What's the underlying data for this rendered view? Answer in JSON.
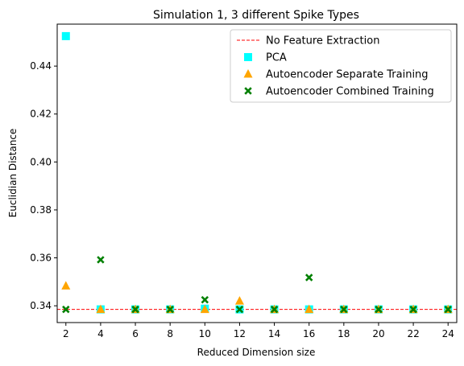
{
  "chart_data": {
    "type": "scatter",
    "title": "Simulation 1, 3 different Spike Types",
    "xlabel": "Reduced Dimension size",
    "ylabel": "Euclidian Distance",
    "xlim": [
      1.5,
      24.5
    ],
    "ylim": [
      0.333,
      0.4575
    ],
    "xticks": [
      2,
      4,
      6,
      8,
      10,
      12,
      14,
      16,
      18,
      20,
      22,
      24
    ],
    "yticks": [
      0.34,
      0.36,
      0.38,
      0.4,
      0.42,
      0.44
    ],
    "ytick_labels": [
      "0.34",
      "0.36",
      "0.38",
      "0.40",
      "0.42",
      "0.44"
    ],
    "grid": false,
    "legend_position": "top-right",
    "reference_line": {
      "name": "No Feature Extraction",
      "y": 0.3385,
      "style": "dashed",
      "color": "#ff0000"
    },
    "series": [
      {
        "name": "PCA",
        "marker": "square",
        "color": "#00ffff",
        "x": [
          2,
          4,
          6,
          8,
          10,
          12,
          14,
          16,
          18,
          20,
          22,
          24
        ],
        "y": [
          0.4525,
          0.3385,
          0.3385,
          0.3385,
          0.3388,
          0.3385,
          0.3385,
          0.3385,
          0.3385,
          0.3385,
          0.3385,
          0.3385
        ]
      },
      {
        "name": "Autoencoder Separate Training",
        "marker": "triangle",
        "color": "#ffa500",
        "x": [
          2,
          4,
          6,
          8,
          10,
          12,
          14,
          16,
          18,
          20,
          22,
          24
        ],
        "y": [
          0.3483,
          0.3385,
          0.3385,
          0.3385,
          0.3385,
          0.342,
          0.3385,
          0.3385,
          0.3385,
          0.3385,
          0.3385,
          0.3385
        ]
      },
      {
        "name": "Autoencoder Combined Training",
        "marker": "x",
        "color": "#008000",
        "x": [
          2,
          4,
          6,
          8,
          10,
          12,
          14,
          16,
          18,
          20,
          22,
          24
        ],
        "y": [
          0.3385,
          0.3592,
          0.3385,
          0.3385,
          0.3425,
          0.3385,
          0.3385,
          0.3518,
          0.3385,
          0.3385,
          0.3385,
          0.3385
        ]
      }
    ]
  }
}
